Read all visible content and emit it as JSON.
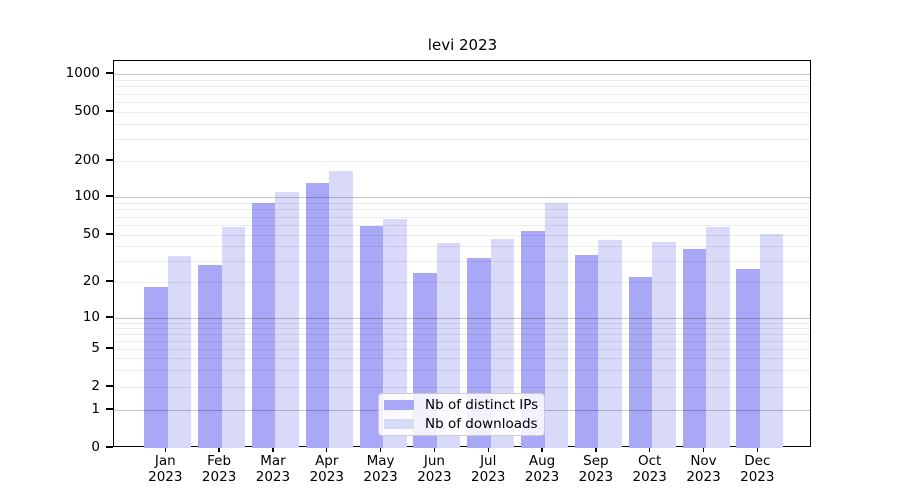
{
  "chart_data": {
    "type": "bar",
    "title": "levi 2023",
    "categories": [
      "Jan 2023",
      "Feb 2023",
      "Mar 2023",
      "Apr 2023",
      "May 2023",
      "Jun 2023",
      "Jul 2023",
      "Aug 2023",
      "Sep 2023",
      "Oct 2023",
      "Nov 2023",
      "Dec 2023"
    ],
    "series": [
      {
        "name": "Nb of distinct IPs",
        "key": "distinct-ips",
        "color": "#a8a8f6",
        "values": [
          18,
          28,
          90,
          130,
          59,
          24,
          32,
          54,
          34,
          22,
          38,
          26
        ]
      },
      {
        "name": "Nb of downloads",
        "key": "downloads",
        "color": "#d9d9fa",
        "values": [
          33,
          58,
          110,
          165,
          67,
          43,
          46,
          90,
          45,
          44,
          58,
          51
        ]
      }
    ],
    "yscale": "symlog",
    "ylim": [
      0,
      1500
    ],
    "y_tick_values": [
      1000,
      500,
      200,
      100,
      50,
      20,
      10,
      5,
      2,
      1,
      0
    ],
    "y_minor_gridlines": [
      900,
      800,
      700,
      600,
      500,
      400,
      300,
      200,
      90,
      80,
      70,
      60,
      50,
      40,
      30,
      20,
      9,
      8,
      7,
      6,
      5,
      4,
      3,
      2
    ],
    "y_major_gridlines": [
      1000,
      100,
      10,
      1
    ],
    "grid": true,
    "xlabel": "",
    "ylabel": "",
    "legend_position": "lower-center"
  },
  "colors": {
    "background": "#ffffff",
    "spine": "#000000",
    "grid_minor": "#ececec",
    "grid_major": "#c8c8c8",
    "legend_border": "#cccccc",
    "text": "#000000"
  }
}
